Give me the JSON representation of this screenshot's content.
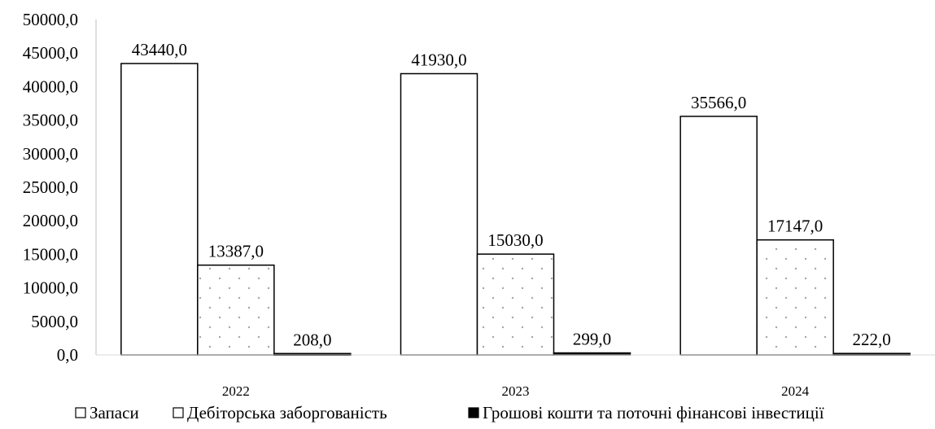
{
  "chart_data": {
    "type": "bar",
    "categories": [
      "2022",
      "2023",
      "2024"
    ],
    "series": [
      {
        "name": "Запаси",
        "values": [
          43440.0,
          41930.0,
          35566.0
        ],
        "value_labels": [
          "43440,0",
          "41930,0",
          "35566,0"
        ],
        "fill": "#ffffff",
        "pattern": "none"
      },
      {
        "name": "Дебіторська заборгованість",
        "values": [
          13387.0,
          15030.0,
          17147.0
        ],
        "value_labels": [
          "13387,0",
          "15030,0",
          "17147,0"
        ],
        "fill": "#ffffff",
        "pattern": "dots"
      },
      {
        "name": "Грошові кошти та поточні фінансові інвестиції",
        "values": [
          208.0,
          299.0,
          222.0
        ],
        "value_labels": [
          "208,0",
          "299,0",
          "222,0"
        ],
        "fill": "#000000",
        "pattern": "none"
      }
    ],
    "ylim": [
      0,
      50000
    ],
    "yticks": [
      0,
      5000,
      10000,
      15000,
      20000,
      25000,
      30000,
      35000,
      40000,
      45000,
      50000
    ],
    "ytick_labels": [
      "0,0",
      "5000,0",
      "10000,0",
      "15000,0",
      "20000,0",
      "25000,0",
      "30000,0",
      "35000,0",
      "40000,0",
      "45000,0",
      "50000,0"
    ],
    "grid": false,
    "legend_position": "bottom",
    "title": "",
    "xlabel": "",
    "ylabel": ""
  }
}
